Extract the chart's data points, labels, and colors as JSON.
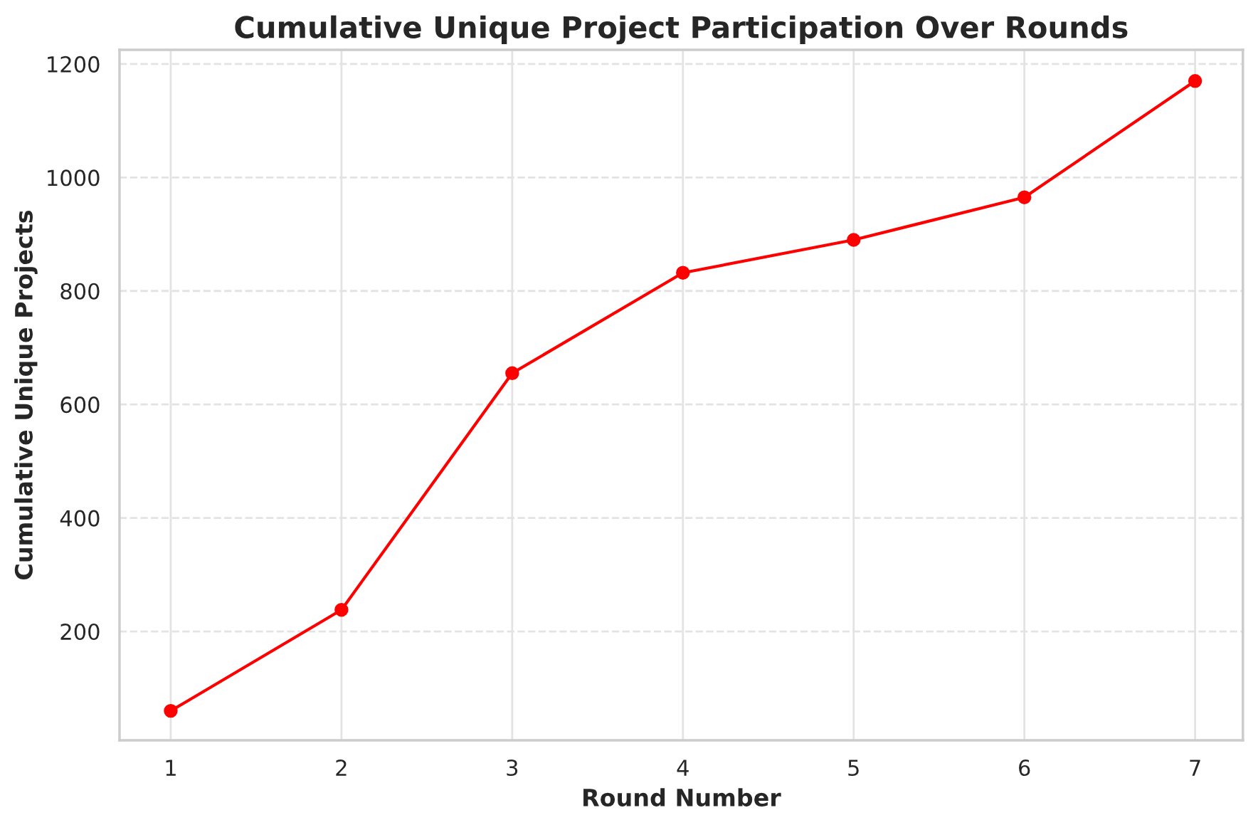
{
  "chart_data": {
    "type": "line",
    "title": "Cumulative Unique Project Participation Over Rounds",
    "xlabel": "Round Number",
    "ylabel": "Cumulative Unique Projects",
    "x": [
      1,
      2,
      3,
      4,
      5,
      6,
      7
    ],
    "series": [
      {
        "color": "#ff0000",
        "values": [
          60,
          238,
          655,
          832,
          890,
          965,
          1170
        ]
      }
    ],
    "xlim": [
      0.7,
      7.28
    ],
    "xticks": [
      1,
      2,
      3,
      4,
      5,
      6,
      7
    ],
    "ylim": [
      8,
      1225
    ],
    "yticks": [
      200,
      400,
      600,
      800,
      1000,
      1200
    ],
    "grid": true,
    "marker": "circle",
    "line_style": "solid"
  }
}
